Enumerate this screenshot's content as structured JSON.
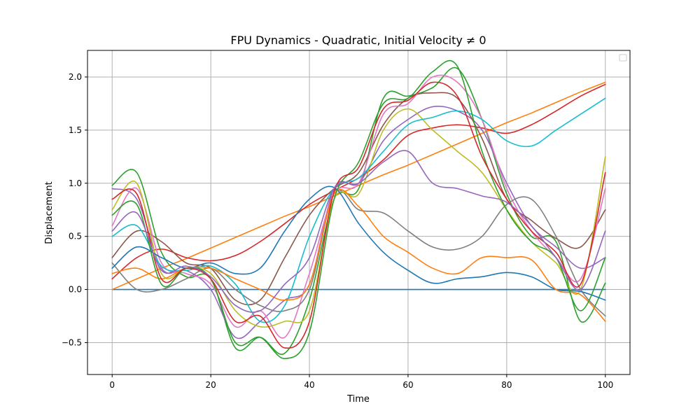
{
  "chart_data": {
    "type": "line",
    "title": "FPU Dynamics - Quadratic, Initial Velocity ≠ 0",
    "xlabel": "Time",
    "ylabel": "Displacement",
    "xlim": [
      -5,
      105
    ],
    "ylim": [
      -0.8,
      2.25
    ],
    "xticks": [
      0,
      20,
      40,
      60,
      80,
      100
    ],
    "yticks": [
      -0.5,
      0.0,
      0.5,
      1.0,
      1.5,
      2.0
    ],
    "xtick_labels": [
      "0",
      "20",
      "40",
      "60",
      "80",
      "100"
    ],
    "ytick_labels": [
      "−0.5",
      "0.0",
      "0.5",
      "1.0",
      "1.5",
      "2.0"
    ],
    "grid": true,
    "legend": {
      "placement": "top-right",
      "entries": []
    },
    "colors": [
      "#1f77b4",
      "#ff7f0e",
      "#2ca02c",
      "#d62728",
      "#9467bd",
      "#8c564b",
      "#e377c2",
      "#7f7f7f",
      "#bcbd22",
      "#17becf"
    ],
    "x": [
      0,
      5,
      10,
      15,
      20,
      25,
      30,
      35,
      40,
      45,
      50,
      55,
      60,
      65,
      70,
      75,
      80,
      85,
      90,
      95,
      100
    ],
    "series": [
      {
        "values": [
          0,
          0,
          0,
          0,
          0,
          0,
          0,
          0,
          0,
          0,
          0,
          0,
          0,
          0,
          0,
          0,
          0,
          0,
          0,
          0,
          0
        ]
      },
      {
        "values": [
          0,
          0.1,
          0.2,
          0.29,
          0.39,
          0.49,
          0.59,
          0.69,
          0.78,
          0.88,
          0.98,
          1.08,
          1.17,
          1.27,
          1.37,
          1.47,
          1.57,
          1.66,
          1.76,
          1.86,
          1.95
        ]
      },
      {
        "values": [
          0.98,
          1.1,
          0.35,
          0.12,
          0.1,
          -0.55,
          -0.45,
          -0.6,
          -0.1,
          0.85,
          0.95,
          1.8,
          1.82,
          1.9,
          2.08,
          1.6,
          0.9,
          0.5,
          0.45,
          -0.3,
          0.06
        ]
      },
      {
        "values": [
          0.1,
          0.3,
          0.38,
          0.3,
          0.27,
          0.32,
          0.45,
          0.62,
          0.8,
          0.93,
          1.05,
          1.22,
          1.45,
          1.52,
          1.55,
          1.52,
          1.47,
          1.55,
          1.68,
          1.82,
          1.93
        ]
      },
      {
        "values": [
          0.95,
          0.85,
          0.2,
          0.18,
          0.0,
          -0.45,
          -0.3,
          -0.1,
          0.05,
          0.95,
          1.0,
          1.4,
          1.6,
          1.72,
          1.68,
          1.5,
          1.0,
          0.6,
          0.4,
          0.2,
          0.3
        ]
      },
      {
        "values": [
          0.3,
          0.55,
          0.45,
          0.25,
          0.2,
          -0.1,
          -0.1,
          0.3,
          0.7,
          0.95,
          1.1,
          1.55,
          1.8,
          1.85,
          1.8,
          1.42,
          0.85,
          0.65,
          0.48,
          0.4,
          0.75
        ]
      },
      {
        "values": [
          0.6,
          0.95,
          0.25,
          0.15,
          0.05,
          -0.35,
          -0.2,
          -0.45,
          0.15,
          0.9,
          1.0,
          1.65,
          1.75,
          2.0,
          1.95,
          1.6,
          0.95,
          0.55,
          0.3,
          0.1,
          0.95
        ]
      },
      {
        "values": [
          0.25,
          0.0,
          0.0,
          0.1,
          0.2,
          0.0,
          -0.15,
          -0.2,
          0.0,
          0.9,
          0.75,
          0.72,
          0.55,
          0.4,
          0.38,
          0.5,
          0.8,
          0.85,
          0.5,
          0.0,
          -0.25
        ]
      },
      {
        "values": [
          0.75,
          1.0,
          0.15,
          0.2,
          0.15,
          -0.2,
          -0.35,
          -0.3,
          -0.2,
          0.85,
          0.9,
          1.5,
          1.7,
          1.5,
          1.3,
          1.1,
          0.75,
          0.45,
          0.25,
          0.0,
          1.25
        ]
      },
      {
        "values": [
          0.5,
          0.6,
          0.22,
          0.18,
          0.22,
          0.05,
          -0.3,
          -0.15,
          0.5,
          0.95,
          1.05,
          1.3,
          1.55,
          1.62,
          1.68,
          1.6,
          1.4,
          1.35,
          1.5,
          1.65,
          1.8
        ]
      },
      {
        "values": [
          0.2,
          0.4,
          0.3,
          0.2,
          0.25,
          0.15,
          0.2,
          0.55,
          0.85,
          0.96,
          0.62,
          0.35,
          0.18,
          0.06,
          0.1,
          0.12,
          0.16,
          0.12,
          0.0,
          -0.02,
          -0.1
        ]
      },
      {
        "values": [
          0.15,
          0.2,
          0.1,
          0.2,
          0.2,
          0.1,
          0.0,
          -0.1,
          0.05,
          0.9,
          0.78,
          0.5,
          0.35,
          0.2,
          0.15,
          0.3,
          0.3,
          0.28,
          0.0,
          -0.05,
          -0.3
        ]
      },
      {
        "values": [
          0.7,
          0.8,
          0.05,
          0.2,
          0.1,
          -0.5,
          -0.45,
          -0.65,
          -0.4,
          0.85,
          1.2,
          1.75,
          1.8,
          2.05,
          2.1,
          1.3,
          0.75,
          0.45,
          0.3,
          -0.2,
          0.3
        ]
      },
      {
        "values": [
          0.85,
          0.9,
          0.1,
          0.2,
          0.1,
          -0.3,
          -0.25,
          -0.55,
          -0.3,
          0.92,
          1.15,
          1.7,
          1.78,
          1.95,
          1.82,
          1.25,
          0.85,
          0.55,
          0.35,
          0.05,
          1.1
        ]
      },
      {
        "values": [
          0.55,
          0.72,
          0.18,
          0.22,
          0.12,
          -0.15,
          -0.2,
          0.05,
          0.3,
          0.95,
          1.0,
          1.2,
          1.3,
          1.0,
          0.95,
          0.88,
          0.82,
          0.6,
          0.3,
          0.0,
          0.55
        ]
      }
    ]
  }
}
